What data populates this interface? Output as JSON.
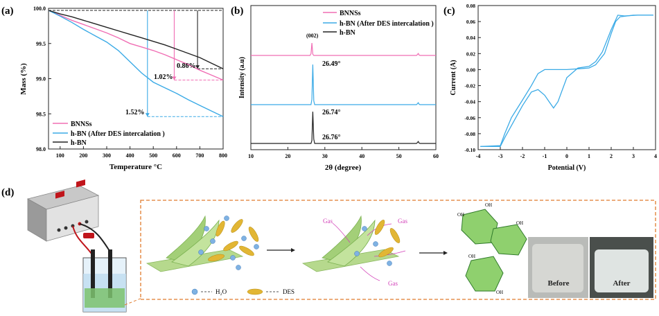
{
  "panels": {
    "a": {
      "letter": "(a)",
      "title": "",
      "xlabel": "Temperature °C",
      "ylabel": "Mass (%)",
      "xlim": [
        50,
        800
      ],
      "ylim": [
        98.0,
        100.0
      ],
      "xticks": [
        "100",
        "200",
        "300",
        "400",
        "500",
        "600",
        "700",
        "800"
      ],
      "yticks": [
        "98.0",
        "98.5",
        "99.0",
        "99.5",
        "100.0"
      ],
      "legend": [
        "BNNSs",
        "h-BN (After DES intercalation )",
        "h-BN"
      ],
      "annotations": [
        "0.86%",
        "1.02%",
        "1.52%"
      ],
      "colors": {
        "BNNSs": "#f06eb4",
        "DES": "#3aaae6",
        "hBN": "#222222"
      }
    },
    "b": {
      "letter": "(b)",
      "xlabel": "2θ  (degree)",
      "ylabel": "Intensity (a.u)",
      "xlim": [
        10,
        60
      ],
      "xticks": [
        "10",
        "20",
        "30",
        "40",
        "50",
        "60"
      ],
      "legend": [
        "BNNSs",
        "h-BN (After DES intercalation )",
        "h-BN"
      ],
      "peak_label": "(002)",
      "peaks": [
        "26.49°",
        "26.74°",
        "26.76°"
      ]
    },
    "c": {
      "letter": "(c)",
      "xlabel": "Potential (V)",
      "ylabel": "Current (A)",
      "xlim": [
        -4,
        4
      ],
      "ylim": [
        -0.1,
        0.08
      ],
      "xticks": [
        "-4",
        "-3",
        "-2",
        "-1",
        "0",
        "1",
        "2",
        "3",
        "4"
      ],
      "yticks": [
        "-0.10",
        "-0.08",
        "-0.06",
        "-0.04",
        "-0.02",
        "0.00",
        "0.02",
        "0.04",
        "0.06",
        "0.08"
      ]
    },
    "d": {
      "letter": "(d)",
      "labels": {
        "gas": "Gas",
        "h2o": "H₂O",
        "des": "DES",
        "before": "Before",
        "after": "After",
        "oh": "OH"
      }
    }
  },
  "chart_data": [
    {
      "type": "line",
      "title": "",
      "xlabel": "Temperature °C",
      "ylabel": "Mass (%)",
      "xlim": [
        50,
        800
      ],
      "ylim": [
        98.0,
        100.0
      ],
      "grid": false,
      "legend_position": "bottom-left",
      "series": [
        {
          "name": "BNNSs",
          "color": "#f06eb4",
          "x": [
            50,
            100,
            150,
            200,
            250,
            300,
            350,
            400,
            450,
            500,
            550,
            600,
            650,
            700,
            750,
            800
          ],
          "y": [
            99.97,
            99.9,
            99.83,
            99.77,
            99.71,
            99.65,
            99.58,
            99.5,
            99.45,
            99.4,
            99.34,
            99.27,
            99.2,
            99.12,
            99.05,
            98.98
          ]
        },
        {
          "name": "h-BN (After DES intercalation )",
          "color": "#3aaae6",
          "x": [
            50,
            100,
            150,
            200,
            250,
            300,
            350,
            400,
            450,
            500,
            550,
            600,
            650,
            700,
            750,
            800
          ],
          "y": [
            99.97,
            99.89,
            99.8,
            99.7,
            99.61,
            99.52,
            99.4,
            99.24,
            99.08,
            98.95,
            98.87,
            98.79,
            98.7,
            98.62,
            98.54,
            98.46
          ]
        },
        {
          "name": "h-BN",
          "color": "#222222",
          "x": [
            50,
            100,
            150,
            200,
            250,
            300,
            350,
            400,
            450,
            500,
            550,
            600,
            650,
            700,
            750,
            800
          ],
          "y": [
            99.97,
            99.92,
            99.88,
            99.83,
            99.78,
            99.73,
            99.68,
            99.63,
            99.58,
            99.53,
            99.48,
            99.42,
            99.36,
            99.3,
            99.22,
            99.14
          ]
        }
      ],
      "markers": [
        {
          "label": "0.86%",
          "x": 690,
          "y": 99.14
        },
        {
          "label": "1.02%",
          "x": 590,
          "y": 98.98
        },
        {
          "label": "1.52%",
          "x": 475,
          "y": 98.46
        }
      ]
    },
    {
      "type": "line",
      "title": "",
      "xlabel": "2θ  (degree)",
      "ylabel": "Intensity (a.u)",
      "xlim": [
        10,
        60
      ],
      "grid": false,
      "legend_position": "top-right",
      "series": [
        {
          "name": "BNNSs",
          "color": "#f06eb4",
          "peak_x": 26.49,
          "peak_height": 0.75
        },
        {
          "name": "h-BN (After DES intercalation )",
          "color": "#3aaae6",
          "peak_x": 26.74,
          "peak_height": 1.0
        },
        {
          "name": "h-BN",
          "color": "#222222",
          "peak_x": 26.76,
          "peak_height": 1.0
        }
      ]
    },
    {
      "type": "line",
      "title": "",
      "xlabel": "Potential (V)",
      "ylabel": "Current (A)",
      "xlim": [
        -4,
        4
      ],
      "ylim": [
        -0.1,
        0.08
      ],
      "grid": false,
      "series": [
        {
          "name": "",
          "color": "#3aaae6",
          "x": [
            -3.9,
            -3.0,
            -2.8,
            -2.5,
            -2.0,
            -1.6,
            -1.3,
            -1.0,
            -0.8,
            -0.6,
            -0.4,
            0.0,
            0.5,
            1.0,
            1.3,
            1.6,
            2.0,
            2.3,
            2.6,
            3.2,
            3.9
          ],
          "y": [
            -0.096,
            -0.096,
            -0.085,
            -0.07,
            -0.045,
            -0.028,
            -0.025,
            -0.032,
            -0.04,
            -0.048,
            -0.04,
            -0.01,
            0.002,
            0.004,
            0.01,
            0.022,
            0.05,
            0.068,
            0.067,
            0.068,
            0.068
          ]
        },
        {
          "name": "",
          "color": "#3aaae6",
          "x": [
            3.9,
            3.0,
            2.4,
            2.2,
            2.0,
            1.7,
            1.3,
            1.0,
            0.5,
            0.0,
            -0.5,
            -1.0,
            -1.3,
            -1.6,
            -2.0,
            -2.5,
            -2.8,
            -3.0,
            -3.9
          ],
          "y": [
            0.068,
            0.068,
            0.066,
            0.06,
            0.045,
            0.02,
            0.006,
            0.002,
            0.001,
            0.0,
            0.0,
            0.0,
            -0.005,
            -0.02,
            -0.038,
            -0.06,
            -0.08,
            -0.095,
            -0.096
          ]
        }
      ]
    }
  ]
}
